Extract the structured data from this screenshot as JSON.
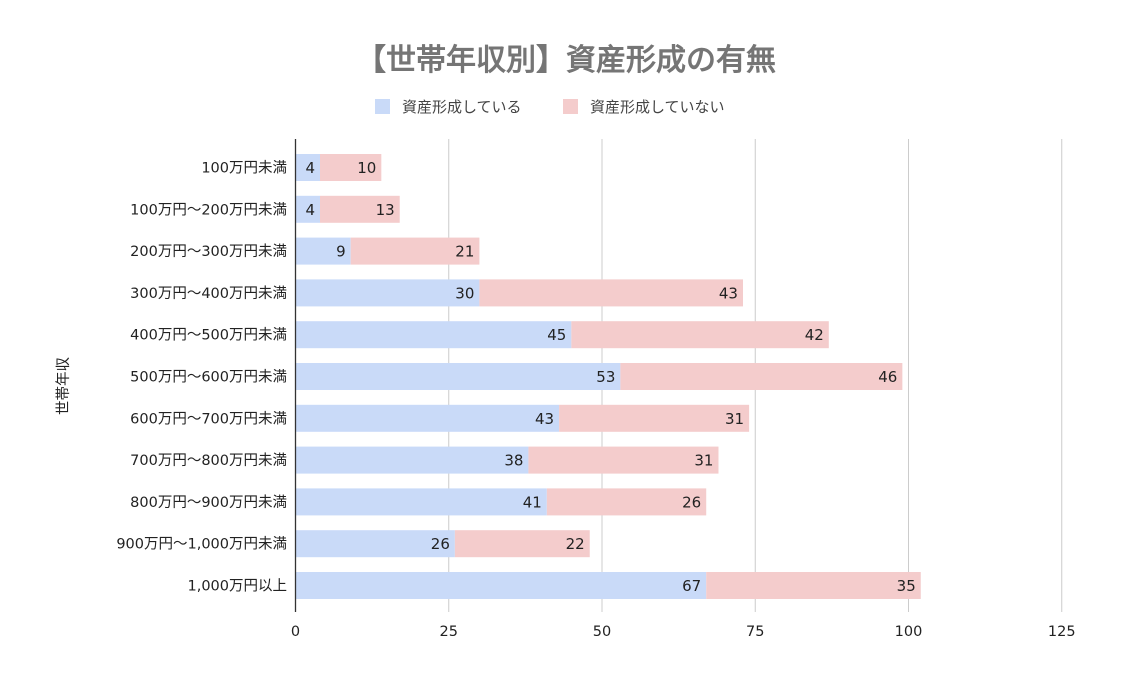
{
  "chart_data": {
    "type": "bar",
    "orientation": "horizontal",
    "stacked": true,
    "title": "【世帯年収別】資産形成の有無",
    "xlabel": "",
    "ylabel": "世帯年収",
    "xlim": [
      0,
      125
    ],
    "xticks": [
      0,
      25,
      50,
      75,
      100,
      125
    ],
    "grid": true,
    "legend_position": "top",
    "categories": [
      "100万円未満",
      "100万円～200万円未満",
      "200万円～300万円未満",
      "300万円～400万円未満",
      "400万円～500万円未満",
      "500万円～600万円未満",
      "600万円～700万円未満",
      "700万円～800万円未満",
      "800万円～900万円未満",
      "900万円～1,000万円未満",
      "1,000万円以上"
    ],
    "series": [
      {
        "name": "資産形成している",
        "color": "#c9daf8",
        "values": [
          4,
          4,
          9,
          30,
          45,
          53,
          43,
          38,
          41,
          26,
          67
        ]
      },
      {
        "name": "資産形成していない",
        "color": "#f4cccc",
        "values": [
          10,
          13,
          21,
          43,
          42,
          46,
          31,
          31,
          26,
          22,
          35
        ]
      }
    ]
  }
}
